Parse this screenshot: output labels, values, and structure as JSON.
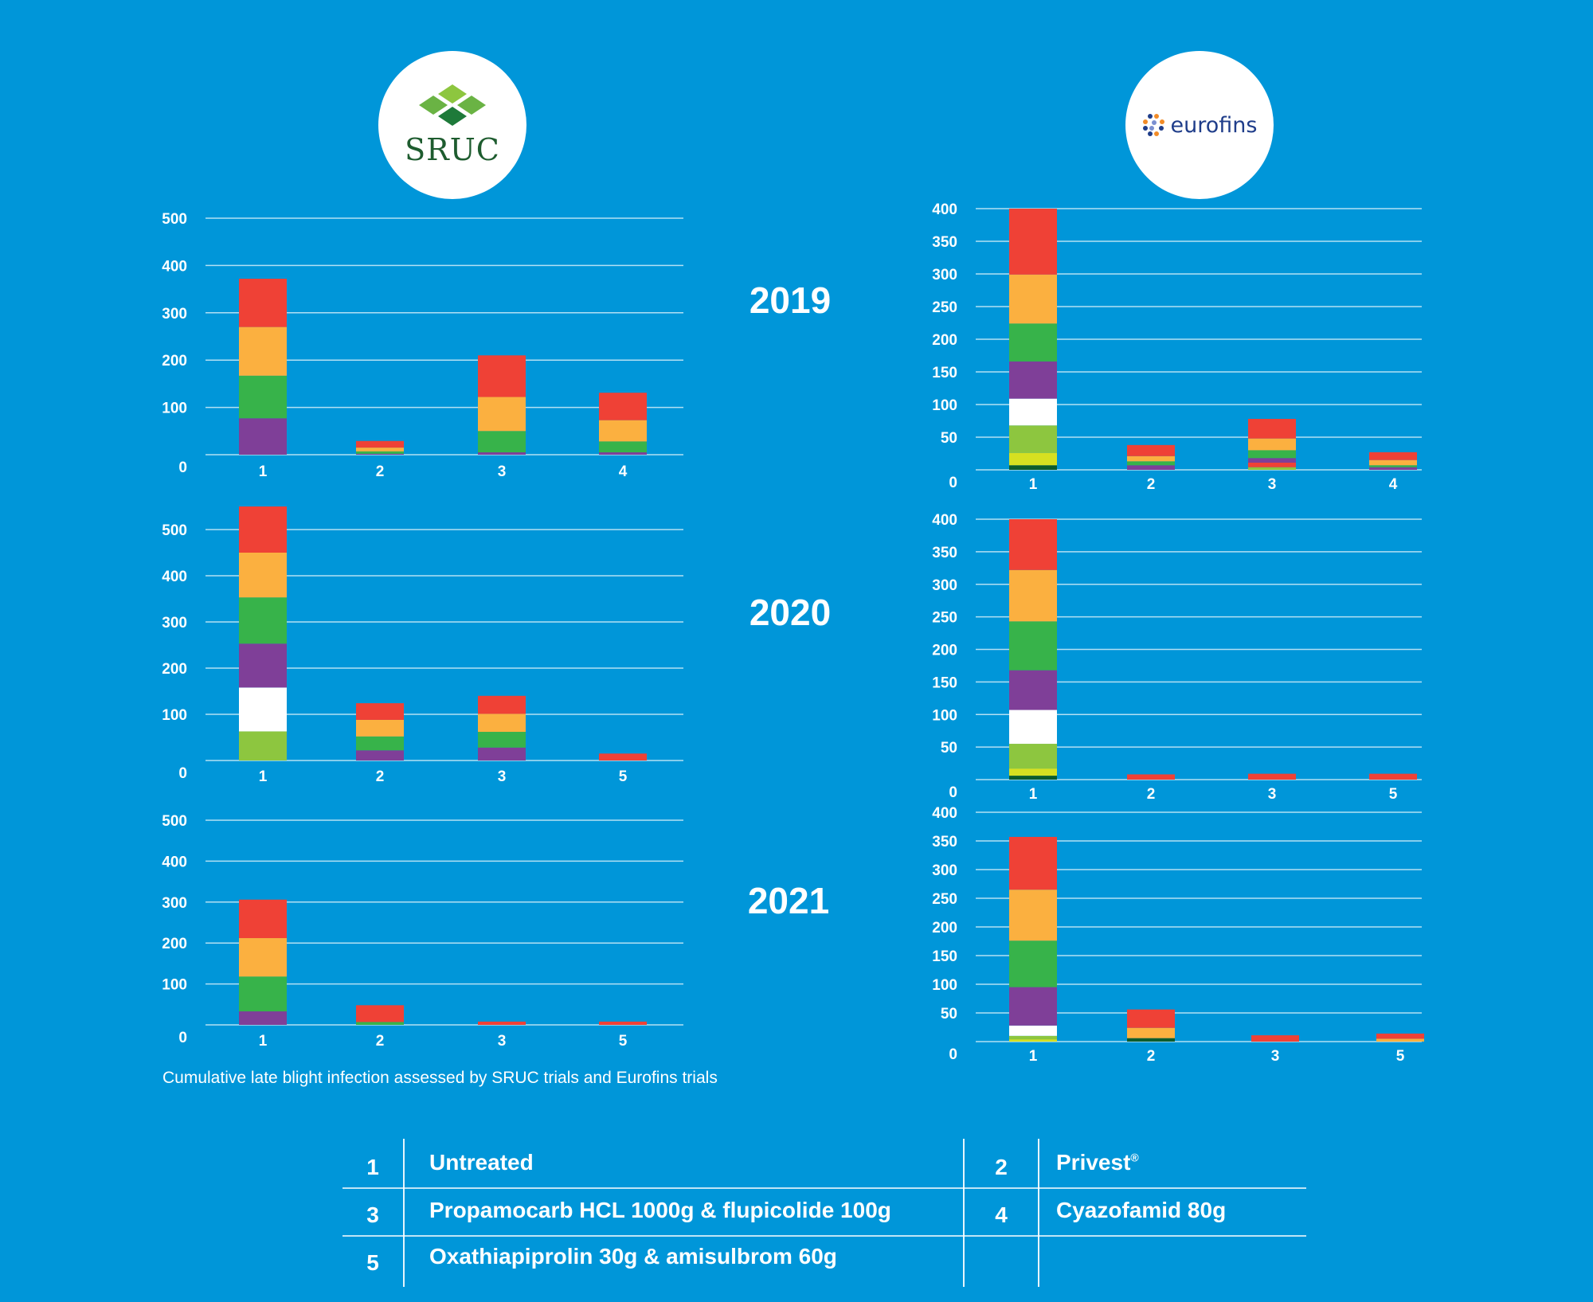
{
  "logos": {
    "left": {
      "name": "SRUC",
      "text": "SRUC"
    },
    "right": {
      "name": "Eurofins",
      "text": "eurofins"
    }
  },
  "years": [
    "2019",
    "2020",
    "2021"
  ],
  "caption": "Cumulative late blight infection assessed by SRUC trials and Eurofins trials",
  "layer_colors": {
    "darkgreen": "#0d5c2c",
    "yellow": "#d6e021",
    "lightgreen": "#8dc63f",
    "white": "#ffffff",
    "purple": "#7f3f98",
    "green": "#37b34a",
    "orange": "#fbb040",
    "red": "#ef4136"
  },
  "legend": {
    "rows": [
      [
        {
          "num": "1",
          "label": "Untreated"
        },
        {
          "num": "2",
          "label": "Privest",
          "sup": "®"
        }
      ],
      [
        {
          "num": "3",
          "label": "Propamocarb HCL 1000g & flupicolide 100g"
        },
        {
          "num": "4",
          "label": "Cyazofamid 80g"
        }
      ],
      [
        {
          "num": "5",
          "label": "Oxathiapiprolin 30g & amisulbrom 60g"
        },
        {
          "num": "",
          "label": ""
        }
      ]
    ]
  },
  "chart_data": [
    {
      "type": "bar",
      "stacked": true,
      "source": "SRUC",
      "year": "2019",
      "title": "",
      "xlabel": "",
      "ylabel": "",
      "ylim": [
        0,
        500
      ],
      "yticks": [
        0,
        100,
        200,
        300,
        400,
        500
      ],
      "grid": true,
      "categories": [
        "1",
        "2",
        "3",
        "4"
      ],
      "bars": [
        {
          "category": "1",
          "layers": [
            [
              "purple",
              77
            ],
            [
              "green",
              90
            ],
            [
              "orange",
              103
            ],
            [
              "red",
              102
            ]
          ]
        },
        {
          "category": "2",
          "layers": [
            [
              "purple",
              2
            ],
            [
              "green",
              5
            ],
            [
              "orange",
              8
            ],
            [
              "red",
              14
            ]
          ]
        },
        {
          "category": "3",
          "layers": [
            [
              "purple",
              5
            ],
            [
              "green",
              45
            ],
            [
              "orange",
              72
            ],
            [
              "red",
              88
            ]
          ]
        },
        {
          "category": "4",
          "layers": [
            [
              "purple",
              5
            ],
            [
              "green",
              23
            ],
            [
              "orange",
              45
            ],
            [
              "red",
              58
            ]
          ]
        }
      ]
    },
    {
      "type": "bar",
      "stacked": true,
      "source": "SRUC",
      "year": "2020",
      "title": "",
      "xlabel": "",
      "ylabel": "",
      "ylim": [
        0,
        500
      ],
      "yticks": [
        0,
        100,
        200,
        300,
        400,
        500
      ],
      "grid": true,
      "categories": [
        "1",
        "2",
        "3",
        "5"
      ],
      "bars": [
        {
          "category": "1",
          "layers": [
            [
              "lightgreen",
              63
            ],
            [
              "white",
              95
            ],
            [
              "purple",
              95
            ],
            [
              "green",
              100
            ],
            [
              "orange",
              97
            ],
            [
              "red",
              100
            ]
          ]
        },
        {
          "category": "2",
          "layers": [
            [
              "purple",
              22
            ],
            [
              "green",
              30
            ],
            [
              "orange",
              36
            ],
            [
              "red",
              36
            ]
          ]
        },
        {
          "category": "3",
          "layers": [
            [
              "purple",
              28
            ],
            [
              "green",
              34
            ],
            [
              "orange",
              39
            ],
            [
              "red",
              39
            ]
          ]
        },
        {
          "category": "5",
          "layers": [
            [
              "red",
              15
            ]
          ]
        }
      ]
    },
    {
      "type": "bar",
      "stacked": true,
      "source": "SRUC",
      "year": "2021",
      "title": "",
      "xlabel": "",
      "ylabel": "",
      "ylim": [
        0,
        500
      ],
      "yticks": [
        0,
        100,
        200,
        300,
        400,
        500
      ],
      "grid": true,
      "categories": [
        "1",
        "2",
        "3",
        "5"
      ],
      "bars": [
        {
          "category": "1",
          "layers": [
            [
              "purple",
              33
            ],
            [
              "green",
              85
            ],
            [
              "orange",
              94
            ],
            [
              "red",
              94
            ]
          ]
        },
        {
          "category": "2",
          "layers": [
            [
              "green",
              7
            ],
            [
              "red",
              41
            ]
          ]
        },
        {
          "category": "3",
          "layers": [
            [
              "red",
              8
            ]
          ]
        },
        {
          "category": "5",
          "layers": [
            [
              "red",
              8
            ]
          ]
        }
      ]
    },
    {
      "type": "bar",
      "stacked": true,
      "source": "Eurofins",
      "year": "2019",
      "title": "",
      "xlabel": "",
      "ylabel": "",
      "ylim": [
        0,
        400
      ],
      "yticks": [
        0,
        50,
        100,
        150,
        200,
        250,
        300,
        350,
        400
      ],
      "grid": true,
      "categories": [
        "1",
        "2",
        "3",
        "4"
      ],
      "bars": [
        {
          "category": "1",
          "layers": [
            [
              "darkgreen",
              7
            ],
            [
              "yellow",
              19
            ],
            [
              "lightgreen",
              42
            ],
            [
              "white",
              41
            ],
            [
              "purple",
              57
            ],
            [
              "green",
              58
            ],
            [
              "orange",
              75
            ],
            [
              "red",
              101
            ]
          ]
        },
        {
          "category": "2",
          "layers": [
            [
              "purple",
              7
            ],
            [
              "green",
              6
            ],
            [
              "orange",
              8
            ],
            [
              "red",
              17
            ]
          ]
        },
        {
          "category": "3",
          "layers": [
            [
              "lightgreen",
              4
            ],
            [
              "red",
              7
            ],
            [
              "purple",
              7
            ],
            [
              "green",
              12
            ],
            [
              "orange",
              18
            ],
            [
              "red",
              30
            ]
          ]
        },
        {
          "category": "4",
          "layers": [
            [
              "purple",
              4
            ],
            [
              "green",
              3
            ],
            [
              "orange",
              8
            ],
            [
              "red",
              12
            ]
          ]
        }
      ]
    },
    {
      "type": "bar",
      "stacked": true,
      "source": "Eurofins",
      "year": "2020",
      "title": "",
      "xlabel": "",
      "ylabel": "",
      "ylim": [
        0,
        400
      ],
      "yticks": [
        0,
        50,
        100,
        150,
        200,
        250,
        300,
        350,
        400
      ],
      "grid": true,
      "categories": [
        "1",
        "2",
        "3",
        "5"
      ],
      "bars": [
        {
          "category": "1",
          "layers": [
            [
              "darkgreen",
              6
            ],
            [
              "yellow",
              11
            ],
            [
              "lightgreen",
              38
            ],
            [
              "white",
              52
            ],
            [
              "purple",
              61
            ],
            [
              "green",
              75
            ],
            [
              "orange",
              79
            ],
            [
              "red",
              78
            ]
          ]
        },
        {
          "category": "2",
          "layers": [
            [
              "red",
              8
            ]
          ]
        },
        {
          "category": "3",
          "layers": [
            [
              "red",
              9
            ]
          ]
        },
        {
          "category": "5",
          "layers": [
            [
              "red",
              9
            ]
          ]
        }
      ]
    },
    {
      "type": "bar",
      "stacked": true,
      "source": "Eurofins",
      "year": "2021",
      "title": "",
      "xlabel": "",
      "ylabel": "",
      "ylim": [
        0,
        400
      ],
      "yticks": [
        0,
        50,
        100,
        150,
        200,
        250,
        300,
        350,
        400
      ],
      "grid": true,
      "categories": [
        "1",
        "2",
        "3",
        "5"
      ],
      "bars": [
        {
          "category": "1",
          "layers": [
            [
              "yellow",
              4
            ],
            [
              "lightgreen",
              6
            ],
            [
              "white",
              18
            ],
            [
              "purple",
              67
            ],
            [
              "green",
              81
            ],
            [
              "orange",
              89
            ],
            [
              "red",
              92
            ]
          ]
        },
        {
          "category": "2",
          "layers": [
            [
              "darkgreen",
              6
            ],
            [
              "orange",
              18
            ],
            [
              "red",
              32
            ]
          ]
        },
        {
          "category": "3",
          "layers": [
            [
              "red",
              11
            ]
          ]
        },
        {
          "category": "5",
          "layers": [
            [
              "orange",
              5
            ],
            [
              "red",
              9
            ]
          ]
        }
      ]
    }
  ]
}
